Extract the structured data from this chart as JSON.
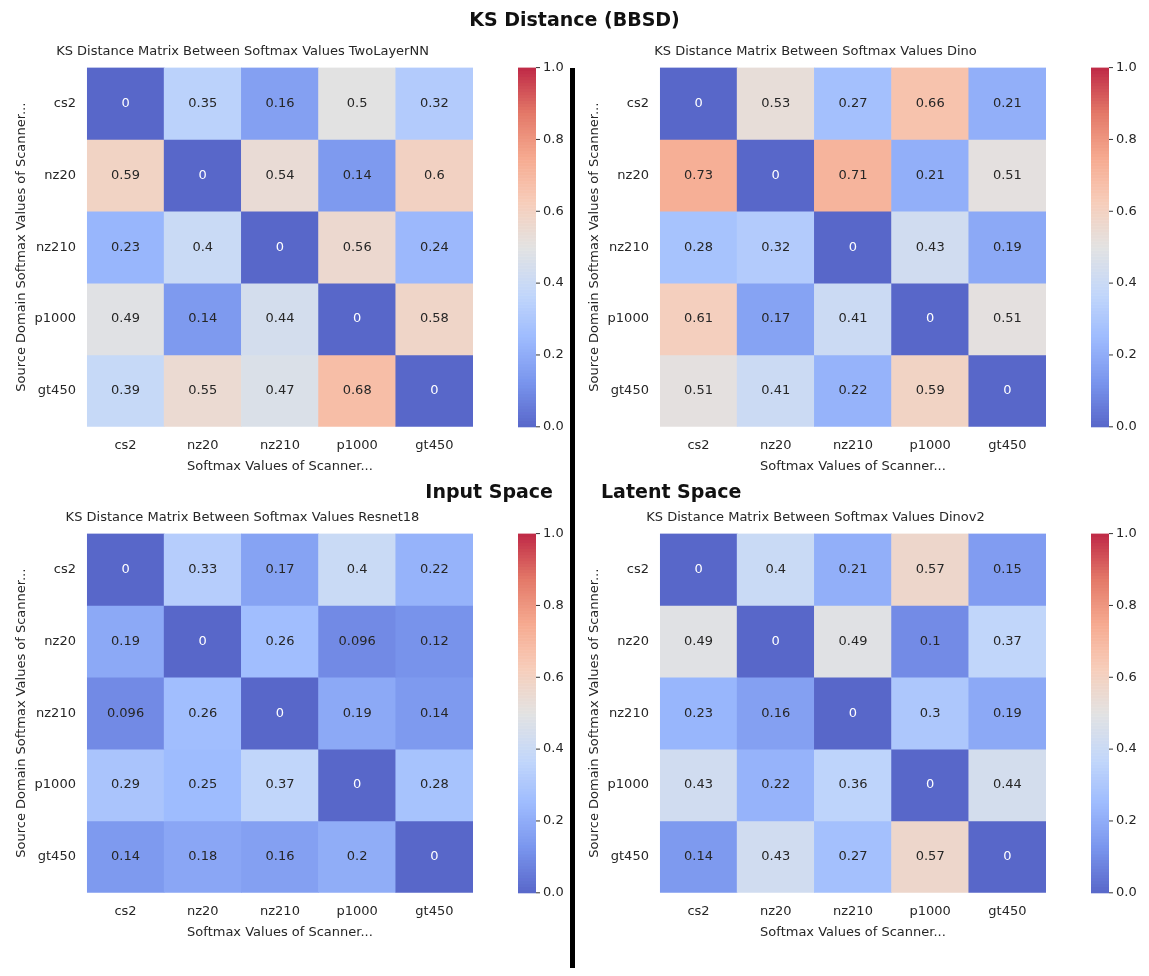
{
  "chart_data": [
    {
      "type": "heatmap",
      "title": "KS Distance Matrix Between Softmax Values TwoLayerNN",
      "xlabel": "Softmax Values of Scanner...",
      "ylabel": "Source Domain Softmax Values of Scanner...",
      "annotations": [
        "KS Distance (BBSD)",
        "Input Space"
      ],
      "categories": [
        "cs2",
        "nz20",
        "nz210",
        "p1000",
        "gt450"
      ],
      "y_categories": [
        "cs2",
        "nz20",
        "nz210",
        "p1000",
        "gt450"
      ],
      "cells": [
        [
          0,
          0.35,
          0.16,
          0.5,
          0.32
        ],
        [
          0.59,
          0,
          0.54,
          0.14,
          0.6
        ],
        [
          0.23,
          0.4,
          0,
          0.56,
          0.24
        ],
        [
          0.49,
          0.14,
          0.44,
          0,
          0.58
        ],
        [
          0.39,
          0.55,
          0.47,
          0.68,
          0
        ]
      ],
      "data_labels": true,
      "clim": [
        0,
        1
      ],
      "cticks": [
        {
          "value": 0,
          "label": "0.0"
        },
        {
          "value": 0.2,
          "label": "0.2"
        },
        {
          "value": 0.4,
          "label": "0.4"
        },
        {
          "value": 0.6,
          "label": "0.6"
        },
        {
          "value": 0.8,
          "label": "0.8"
        },
        {
          "value": 1,
          "label": "1.0"
        }
      ]
    },
    {
      "type": "heatmap",
      "title": "KS Distance Matrix Between Softmax Values Dino",
      "xlabel": "Softmax Values of Scanner...",
      "ylabel": "Source Domain Softmax Values of Scanner...",
      "annotations": [
        "Latent Space"
      ],
      "categories": [
        "cs2",
        "nz20",
        "nz210",
        "p1000",
        "gt450"
      ],
      "y_categories": [
        "cs2",
        "nz20",
        "nz210",
        "p1000",
        "gt450"
      ],
      "cells": [
        [
          0,
          0.53,
          0.27,
          0.66,
          0.21
        ],
        [
          0.73,
          0,
          0.71,
          0.21,
          0.51
        ],
        [
          0.28,
          0.32,
          0,
          0.43,
          0.19
        ],
        [
          0.61,
          0.17,
          0.41,
          0,
          0.51
        ],
        [
          0.51,
          0.41,
          0.22,
          0.59,
          0
        ]
      ],
      "data_labels": true,
      "clim": [
        0,
        1
      ],
      "cticks": [
        {
          "value": 0,
          "label": "0.0"
        },
        {
          "value": 0.2,
          "label": "0.2"
        },
        {
          "value": 0.4,
          "label": "0.4"
        },
        {
          "value": 0.6,
          "label": "0.6"
        },
        {
          "value": 0.8,
          "label": "0.8"
        },
        {
          "value": 1,
          "label": "1.0"
        }
      ]
    },
    {
      "type": "heatmap",
      "title": "KS Distance Matrix Between Softmax Values Resnet18",
      "xlabel": "Softmax Values of Scanner...",
      "ylabel": "Source Domain Softmax Values of Scanner...",
      "categories": [
        "cs2",
        "nz20",
        "nz210",
        "p1000",
        "gt450"
      ],
      "y_categories": [
        "cs2",
        "nz20",
        "nz210",
        "p1000",
        "gt450"
      ],
      "cells": [
        [
          0,
          0.33,
          0.17,
          0.4,
          0.22
        ],
        [
          0.19,
          0,
          0.26,
          0.096,
          0.12
        ],
        [
          0.096,
          0.26,
          0,
          0.19,
          0.14
        ],
        [
          0.29,
          0.25,
          0.37,
          0,
          0.28
        ],
        [
          0.14,
          0.18,
          0.16,
          0.2,
          0
        ]
      ],
      "data_labels": true,
      "clim": [
        0,
        1
      ],
      "cticks": [
        {
          "value": 0,
          "label": "0.0"
        },
        {
          "value": 0.2,
          "label": "0.2"
        },
        {
          "value": 0.4,
          "label": "0.4"
        },
        {
          "value": 0.6,
          "label": "0.6"
        },
        {
          "value": 0.8,
          "label": "0.8"
        },
        {
          "value": 1,
          "label": "1.0"
        }
      ]
    },
    {
      "type": "heatmap",
      "title": "KS Distance Matrix Between Softmax Values Dinov2",
      "xlabel": "Softmax Values of Scanner...",
      "ylabel": "Source Domain Softmax Values of Scanner...",
      "categories": [
        "cs2",
        "nz20",
        "nz210",
        "p1000",
        "gt450"
      ],
      "y_categories": [
        "cs2",
        "nz20",
        "nz210",
        "p1000",
        "gt450"
      ],
      "cells": [
        [
          0,
          0.4,
          0.21,
          0.57,
          0.15
        ],
        [
          0.49,
          0,
          0.49,
          0.1,
          0.37
        ],
        [
          0.23,
          0.16,
          0,
          0.3,
          0.19
        ],
        [
          0.43,
          0.22,
          0.36,
          0,
          0.44
        ],
        [
          0.14,
          0.43,
          0.27,
          0.57,
          0
        ]
      ],
      "data_labels": true,
      "clim": [
        0,
        1
      ],
      "cticks": [
        {
          "value": 0,
          "label": "0.0"
        },
        {
          "value": 0.2,
          "label": "0.2"
        },
        {
          "value": 0.4,
          "label": "0.4"
        },
        {
          "value": 0.6,
          "label": "0.6"
        },
        {
          "value": 0.8,
          "label": "0.8"
        },
        {
          "value": 1,
          "label": "1.0"
        }
      ]
    }
  ]
}
